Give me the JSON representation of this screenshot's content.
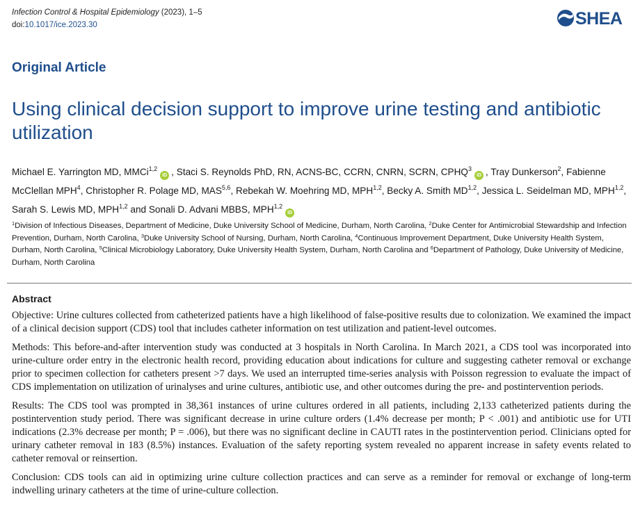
{
  "journal": {
    "name": "Infection Control & Hospital Epidemiology",
    "year_pages": " (2023), 1–5",
    "doi_prefix": "doi:",
    "doi": "10.1017/ice.2023.30"
  },
  "logo": {
    "text": "SHEA",
    "color": "#1f4e8c"
  },
  "article_type": "Original Article",
  "title": "Using clinical decision support to improve urine testing and antibiotic utilization",
  "authors": [
    {
      "name": "Michael E. Yarrington MD, MMCi",
      "sup": "1,2",
      "orcid": true
    },
    {
      "name": "Staci S. Reynolds PhD, RN, ACNS-BC, CCRN, CNRN, SCRN, CPHQ",
      "sup": "3",
      "orcid": true
    },
    {
      "name": "Tray Dunkerson",
      "sup": "2",
      "orcid": false
    },
    {
      "name": "Fabienne McClellan MPH",
      "sup": "4",
      "orcid": false
    },
    {
      "name": "Christopher R. Polage MD, MAS",
      "sup": "5,6",
      "orcid": false
    },
    {
      "name": "Rebekah W. Moehring MD, MPH",
      "sup": "1,2",
      "orcid": false
    },
    {
      "name": "Becky A. Smith MD",
      "sup": "1,2",
      "orcid": false
    },
    {
      "name": "Jessica L. Seidelman MD, MPH",
      "sup": "1,2",
      "orcid": false
    },
    {
      "name": "Sarah S. Lewis MD, MPH",
      "sup": "1,2",
      "orcid": false
    },
    {
      "name": "Sonali D. Advani MBBS, MPH",
      "sup": "1,2",
      "orcid": true
    }
  ],
  "author_separator": ", ",
  "author_last_joiner": " and ",
  "orcid_icon_text": "iD",
  "affiliations": [
    {
      "sup": "1",
      "text": "Division of Infectious Diseases, Department of Medicine, Duke University School of Medicine, Durham, North Carolina, "
    },
    {
      "sup": "2",
      "text": "Duke Center for Antimicrobial Stewardship and Infection Prevention, Durham, North Carolina, "
    },
    {
      "sup": "3",
      "text": "Duke University School of Nursing, Durham, North Carolina, "
    },
    {
      "sup": "4",
      "text": "Continuous Improvement Department, Duke University Health System, Durham, North Carolina, "
    },
    {
      "sup": "5",
      "text": "Clinical Microbiology Laboratory, Duke University Health System, Durham, North Carolina and "
    },
    {
      "sup": "6",
      "text": "Department of Pathology, Duke University of Medicine, Durham, North Carolina"
    }
  ],
  "abstract": {
    "heading": "Abstract",
    "objective": "Objective: Urine cultures collected from catheterized patients have a high likelihood of false-positive results due to colonization. We examined the impact of a clinical decision support (CDS) tool that includes catheter information on test utilization and patient-level outcomes.",
    "methods": "Methods: This before-and-after intervention study was conducted at 3 hospitals in North Carolina. In March 2021, a CDS tool was incorporated into urine-culture order entry in the electronic health record, providing education about indications for culture and suggesting catheter removal or exchange prior to specimen collection for catheters present >7 days. We used an interrupted time-series analysis with Poisson regression to evaluate the impact of CDS implementation on utilization of urinalyses and urine cultures, antibiotic use, and other outcomes during the pre- and postintervention periods.",
    "results": "Results: The CDS tool was prompted in 38,361 instances of urine cultures ordered in all patients, including 2,133 catheterized patients during the postintervention study period. There was significant decrease in urine culture orders (1.4% decrease per month; P < .001) and antibiotic use for UTI indications (2.3% decrease per month; P = .006), but there was no significant decline in CAUTI rates in the postintervention period. Clinicians opted for urinary catheter removal in 183 (8.5%) instances. Evaluation of the safety reporting system revealed no apparent increase in safety events related to catheter removal or reinsertion.",
    "conclusion": "Conclusion: CDS tools can aid in optimizing urine culture collection practices and can serve as a reminder for removal or exchange of long-term indwelling urinary catheters at the time of urine-culture collection."
  }
}
